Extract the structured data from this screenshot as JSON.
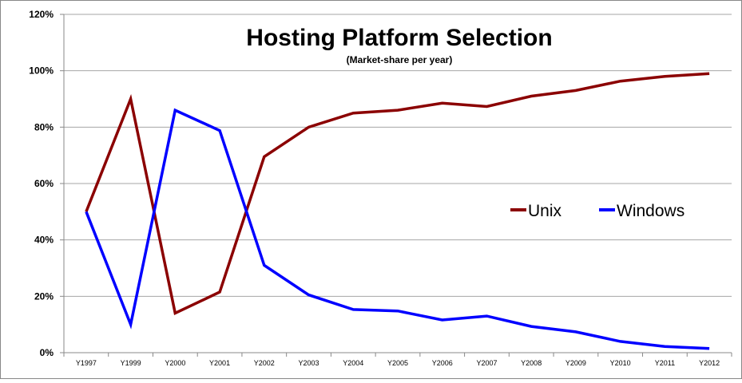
{
  "chart_data": {
    "type": "line",
    "title": "Hosting Platform Selection",
    "subtitle": "(Market-share per year)",
    "xlabel": "",
    "ylabel": "",
    "categories": [
      "Y1997",
      "Y1999",
      "Y2000",
      "Y2001",
      "Y2002",
      "Y2003",
      "Y2004",
      "Y2005",
      "Y2006",
      "Y2007",
      "Y2008",
      "Y2009",
      "Y2010",
      "Y2011",
      "Y2012"
    ],
    "ylim": [
      0,
      120
    ],
    "yticks": [
      "0%",
      "20%",
      "40%",
      "60%",
      "80%",
      "100%",
      "120%"
    ],
    "grid": true,
    "legend_placement": "right",
    "series": [
      {
        "name": "Unix",
        "color": "#8B0000",
        "values": [
          50,
          90,
          14,
          21.5,
          69.5,
          80,
          85,
          86,
          88.5,
          87.3,
          91,
          93,
          96.3,
          98,
          99
        ]
      },
      {
        "name": "Windows",
        "color": "#0000FF",
        "values": [
          50,
          10,
          86,
          78.8,
          31,
          20.5,
          15.3,
          14.8,
          11.6,
          13,
          9.3,
          7.4,
          4,
          2.2,
          1.5
        ]
      }
    ]
  }
}
